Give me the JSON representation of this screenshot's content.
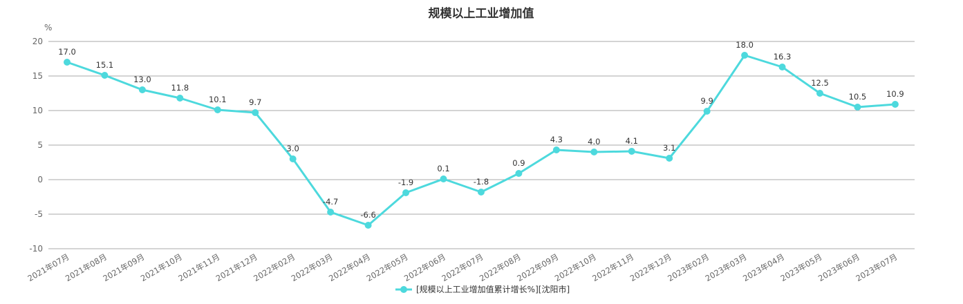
{
  "chart_data": {
    "type": "line",
    "title": "规模以上工业增加值",
    "ylabel": "%",
    "xlabel": "",
    "ylim": [
      -10,
      20
    ],
    "yticks": [
      20,
      15,
      10,
      5,
      0,
      -5,
      -10
    ],
    "grid": true,
    "legend_position": "bottom-center",
    "categories": [
      "2021年07月",
      "2021年08月",
      "2021年09月",
      "2021年10月",
      "2021年11月",
      "2021年12月",
      "2022年02月",
      "2022年03月",
      "2022年04月",
      "2022年05月",
      "2022年06月",
      "2022年07月",
      "2022年08月",
      "2022年09月",
      "2022年10月",
      "2022年11月",
      "2022年12月",
      "2023年02月",
      "2023年03月",
      "2023年04月",
      "2023年05月",
      "2023年06月",
      "2023年07月"
    ],
    "series": [
      {
        "name": "[规模以上工业增加值累计增长%][沈阳市]",
        "color": "#4dd9dd",
        "values": [
          17.0,
          15.1,
          13.0,
          11.8,
          10.1,
          9.7,
          3.0,
          -4.7,
          -6.6,
          -1.9,
          0.1,
          -1.8,
          0.9,
          4.3,
          4.0,
          4.1,
          3.1,
          9.9,
          18.0,
          16.3,
          12.5,
          10.5,
          10.9
        ],
        "labels": [
          "17.0",
          "15.1",
          "13.0",
          "11.8",
          "10.1",
          "9.7",
          "3.0",
          "-4.7",
          "-6.6",
          "-1.9",
          "0.1",
          "-1.8",
          "0.9",
          "4.3",
          "4.0",
          "4.1",
          "3.1",
          "9.9",
          "18.0",
          "16.3",
          "12.5",
          "10.5",
          "10.9"
        ]
      }
    ]
  }
}
